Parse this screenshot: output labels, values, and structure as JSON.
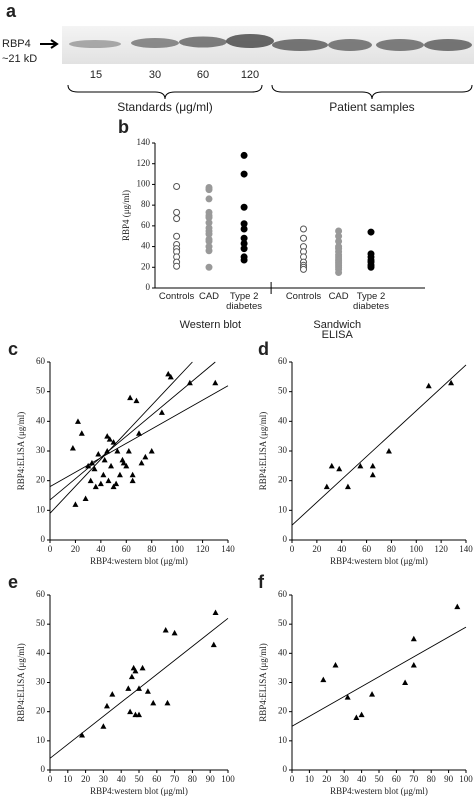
{
  "blot": {
    "panel": "a",
    "marker_label": "RBP4",
    "size_label": "~21 kD",
    "lane_labels": [
      "15",
      "30",
      "60",
      "120"
    ],
    "group_labels": [
      "Standards (μg/ml)",
      "Patient samples"
    ]
  },
  "chart_data": [
    {
      "panel": "b",
      "type": "strip",
      "ylabel": "RBP4 (μg/ml)",
      "categories": [
        "Controls",
        "CAD",
        "Type 2 diabetes",
        "Controls",
        "CAD",
        "Type 2 diabetes"
      ],
      "groups": [
        "Western blot",
        "Sandwich ELISA"
      ],
      "fills": [
        "#ffffff",
        "#999999",
        "#000000",
        "#ffffff",
        "#999999",
        "#000000"
      ],
      "strokes": [
        "#555555",
        "#999999",
        "#000000",
        "#555555",
        "#999999",
        "#000000"
      ],
      "values": [
        [
          98,
          73,
          67,
          50,
          42,
          38,
          35,
          30,
          25,
          21
        ],
        [
          97,
          95,
          86,
          73,
          70,
          68,
          63,
          58,
          55,
          52,
          47,
          45,
          40,
          36,
          20
        ],
        [
          128,
          110,
          78,
          62,
          57,
          48,
          43,
          38,
          30,
          27
        ],
        [
          57,
          48,
          40,
          35,
          30,
          25,
          22,
          20,
          18
        ],
        [
          55,
          50,
          45,
          40,
          38,
          35,
          32,
          30,
          28,
          26,
          24,
          22,
          20,
          18,
          15
        ],
        [
          54,
          33,
          30,
          27,
          25,
          22,
          20
        ]
      ],
      "ylim": [
        0,
        140
      ],
      "yticks": [
        0,
        20,
        40,
        60,
        80,
        100,
        120,
        140
      ]
    },
    {
      "panel": "c",
      "type": "scatter",
      "xlabel": "RBP4:western blot (μg/ml)",
      "ylabel": "RBP4:ELISA (μg/ml)",
      "color": "#000000",
      "x": [
        18,
        20,
        22,
        25,
        28,
        30,
        32,
        33,
        35,
        36,
        38,
        40,
        42,
        43,
        45,
        45,
        46,
        47,
        48,
        50,
        50,
        52,
        53,
        55,
        57,
        58,
        60,
        62,
        63,
        65,
        65,
        68,
        70,
        72,
        75,
        80,
        88,
        93,
        95,
        110,
        130
      ],
      "y": [
        31,
        12,
        40,
        36,
        14,
        25,
        20,
        26,
        24,
        18,
        29,
        19,
        22,
        27,
        35,
        30,
        20,
        34,
        25,
        18,
        33,
        19,
        30,
        22,
        27,
        26,
        25,
        30,
        48,
        22,
        20,
        47,
        36,
        26,
        28,
        30,
        43,
        56,
        55,
        53,
        53
      ],
      "fit_lines": [
        {
          "x": [
            0,
            112
          ],
          "y": [
            9,
            60
          ]
        },
        {
          "x": [
            0,
            130
          ],
          "y": [
            13.5,
            60
          ]
        },
        {
          "x": [
            0,
            140
          ],
          "y": [
            18,
            52
          ]
        }
      ],
      "xlim": [
        0,
        140
      ],
      "xticks": [
        0,
        20,
        40,
        60,
        80,
        100,
        120,
        140
      ],
      "ylim": [
        0,
        60
      ],
      "yticks": [
        0,
        10,
        20,
        30,
        40,
        50,
        60
      ]
    },
    {
      "panel": "d",
      "type": "scatter",
      "xlabel": "RBP4:western blot (μg/ml)",
      "ylabel": "RBP4:ELISA (μg/ml)",
      "color": "#000000",
      "x": [
        28,
        32,
        38,
        45,
        55,
        65,
        65,
        78,
        110,
        128
      ],
      "y": [
        18,
        25,
        24,
        18,
        25,
        25,
        22,
        30,
        52,
        53
      ],
      "fit_lines": [
        {
          "x": [
            0,
            140
          ],
          "y": [
            5,
            59
          ]
        }
      ],
      "xlim": [
        0,
        140
      ],
      "xticks": [
        0,
        20,
        40,
        60,
        80,
        100,
        120,
        140
      ],
      "ylim": [
        0,
        60
      ],
      "yticks": [
        0,
        10,
        20,
        30,
        40,
        50,
        60
      ]
    },
    {
      "panel": "e",
      "type": "scatter",
      "xlabel": "RBP4:western blot (μg/ml)",
      "ylabel": "RBP4:ELISA (μg/ml)",
      "color": "#000000",
      "x": [
        18,
        30,
        32,
        35,
        44,
        45,
        46,
        47,
        48,
        48,
        50,
        50,
        52,
        55,
        58,
        65,
        66,
        70,
        92,
        93
      ],
      "y": [
        12,
        15,
        22,
        26,
        28,
        20,
        32,
        35,
        34,
        19,
        28,
        19,
        35,
        27,
        23,
        48,
        23,
        47,
        43,
        54
      ],
      "fit_lines": [
        {
          "x": [
            0,
            100
          ],
          "y": [
            4,
            52
          ]
        }
      ],
      "xlim": [
        0,
        100
      ],
      "xticks": [
        0,
        10,
        20,
        30,
        40,
        50,
        60,
        70,
        80,
        90,
        100
      ],
      "ylim": [
        0,
        60
      ],
      "yticks": [
        0,
        10,
        20,
        30,
        40,
        50,
        60
      ]
    },
    {
      "panel": "f",
      "type": "scatter",
      "xlabel": "RBP4:western blot (μg/ml)",
      "ylabel": "RBP4:ELISA (μg/ml)",
      "color": "#000000",
      "x": [
        18,
        25,
        32,
        37,
        40,
        46,
        65,
        70,
        70,
        95
      ],
      "y": [
        31,
        36,
        25,
        18,
        19,
        26,
        30,
        36,
        45,
        56
      ],
      "fit_lines": [
        {
          "x": [
            0,
            100
          ],
          "y": [
            15,
            49
          ]
        }
      ],
      "xlim": [
        0,
        100
      ],
      "xticks": [
        0,
        10,
        20,
        30,
        40,
        50,
        60,
        70,
        80,
        90,
        100
      ],
      "ylim": [
        0,
        60
      ],
      "yticks": [
        0,
        10,
        20,
        30,
        40,
        50,
        60
      ]
    }
  ]
}
